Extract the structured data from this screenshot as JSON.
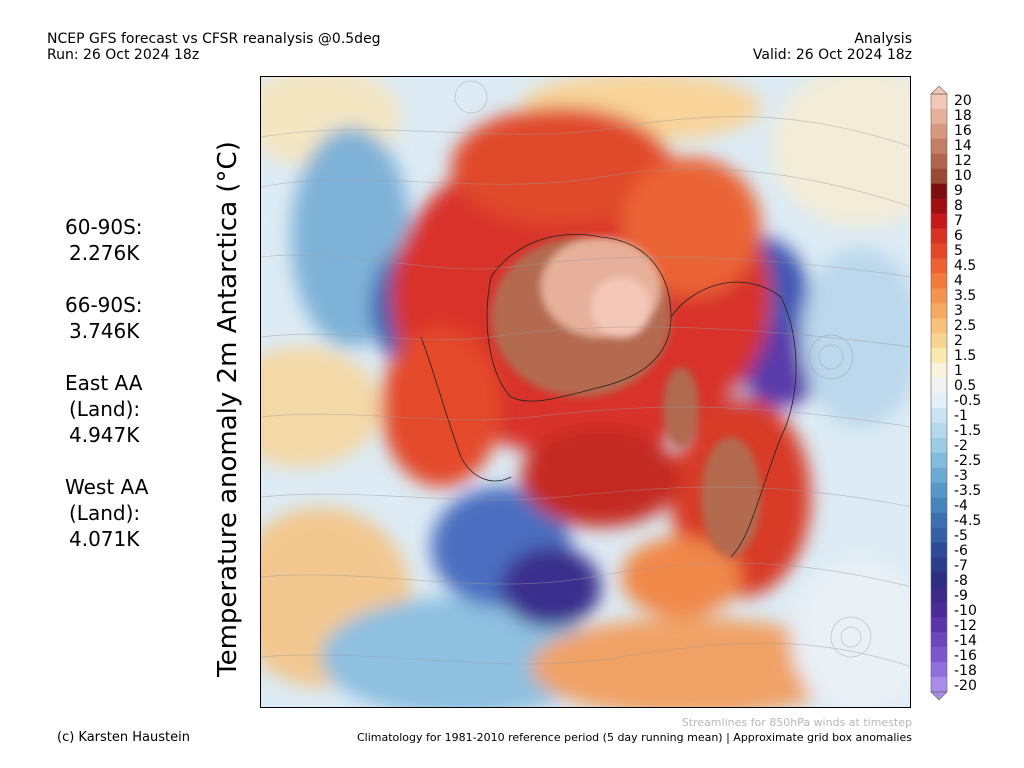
{
  "header": {
    "title_line1": "NCEP GFS forecast vs CFSR reanalysis @0.5deg",
    "title_line2": "Run: 26 Oct 2024 18z",
    "right_line1": "Analysis",
    "right_line2": "Valid: 26 Oct 2024 18z"
  },
  "stats": [
    {
      "label": "60-90S:",
      "value": "2.276K"
    },
    {
      "label": "66-90S:",
      "value": "3.746K"
    },
    {
      "label1": "East AA",
      "label2": "(Land):",
      "value": "4.947K"
    },
    {
      "label1": "West AA",
      "label2": "(Land):",
      "value": "4.071K"
    }
  ],
  "map_title": "Temperature anomaly 2m Antarctica (°C)",
  "colorbar": {
    "labels": [
      "20",
      "18",
      "16",
      "14",
      "12",
      "10",
      "9",
      "8",
      "7",
      "6",
      "5",
      "4.5",
      "4",
      "3.5",
      "3",
      "2.5",
      "2",
      "1.5",
      "1",
      "0.5",
      "-0.5",
      "-1",
      "-1.5",
      "-2",
      "-2.5",
      "-3",
      "-3.5",
      "-4",
      "-4.5",
      "-5",
      "-6",
      "-7",
      "-8",
      "-9",
      "-10",
      "-12",
      "-14",
      "-16",
      "-18",
      "-20"
    ],
    "colors": [
      "#f4c8b8",
      "#e6b09a",
      "#d8987d",
      "#c47e63",
      "#b0654c",
      "#9a4a33",
      "#7c1010",
      "#a01010",
      "#c41a1a",
      "#d83222",
      "#e4482a",
      "#ee6232",
      "#f27a3c",
      "#f59450",
      "#f7ab62",
      "#f8c079",
      "#f8d490",
      "#faeab0",
      "#fbf4dc",
      "#f2f2f2",
      "#e4f0f8",
      "#cce4f2",
      "#b4d8ec",
      "#9ccbe6",
      "#84bcde",
      "#6cabd4",
      "#5898c8",
      "#4884bc",
      "#3c70b0",
      "#3360a6",
      "#2c4a98",
      "#2a3c8c",
      "#2e2e80",
      "#3c2a8a",
      "#4a2c98",
      "#5a36aa",
      "#6c46bc",
      "#7c58cc",
      "#9070dc",
      "#a88cea"
    ]
  },
  "footer": {
    "stream_note": "Streamlines for 850hPa winds at timestep",
    "climatology_note": "Climatology for 1981-2010 reference period (5 day running mean) | Approximate grid box anomalies",
    "credit": "(c) Karsten Haustein"
  }
}
